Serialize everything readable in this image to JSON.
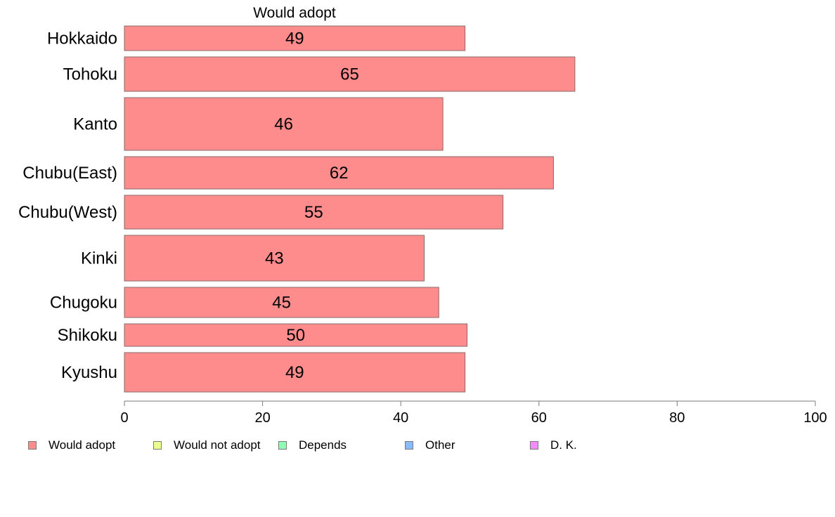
{
  "chart_data": {
    "type": "bar",
    "orientation": "horizontal",
    "title": "Would adopt",
    "categories": [
      "Hokkaido",
      "Tohoku",
      "Kanto",
      "Chubu(East)",
      "Chubu(West)",
      "Kinki",
      "Chugoku",
      "Shikoku",
      "Kyushu"
    ],
    "series": [
      {
        "name": "Would adopt",
        "color": "#ff8c8c",
        "values": [
          49.3,
          65.2,
          46.1,
          62.1,
          54.8,
          43.4,
          45.5,
          49.6,
          49.3
        ],
        "labels": [
          "49",
          "65",
          "46",
          "62",
          "55",
          "43",
          "45",
          "50",
          "49"
        ]
      }
    ],
    "xlim": [
      0,
      100
    ],
    "xticks": [
      "0",
      "20",
      "40",
      "60",
      "80",
      "100"
    ],
    "grid": false,
    "legend_position": "bottom",
    "legend": [
      {
        "label": "Would adopt",
        "color": "#ff8c8c"
      },
      {
        "label": "Would not adopt",
        "color": "#eaff8c"
      },
      {
        "label": "Depends",
        "color": "#8cffb4"
      },
      {
        "label": "Other",
        "color": "#8cbaff"
      },
      {
        "label": "D. K.",
        "color": "#f28cff"
      }
    ]
  }
}
